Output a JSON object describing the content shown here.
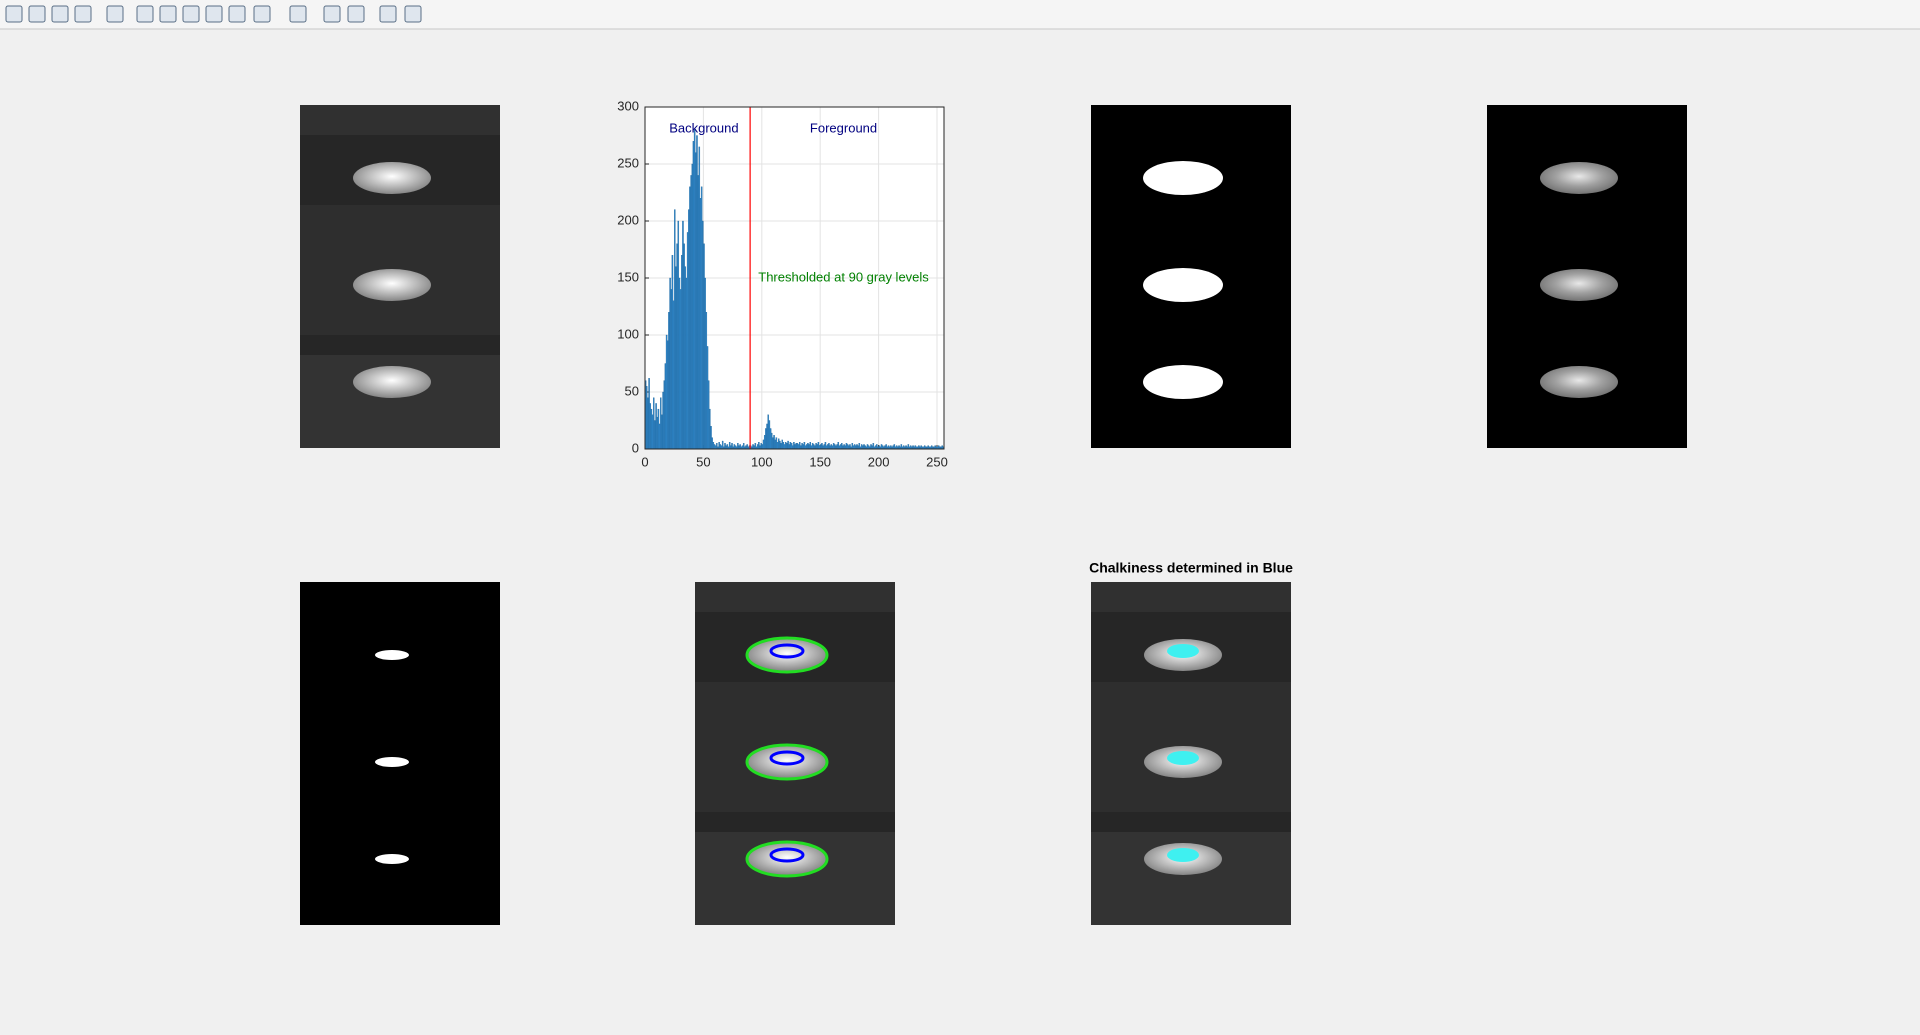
{
  "figure": {
    "subplot_title": "Chalkiness determined in Blue"
  },
  "chart_data": {
    "type": "histogram",
    "bins": [
      0,
      1,
      2,
      3,
      4,
      5,
      6,
      7,
      8,
      9,
      10,
      11,
      12,
      13,
      14,
      15,
      16,
      17,
      18,
      19,
      20,
      21,
      22,
      23,
      24,
      25,
      26,
      27,
      28,
      29,
      30,
      31,
      32,
      33,
      34,
      35,
      36,
      37,
      38,
      39,
      40,
      41,
      42,
      43,
      44,
      45,
      46,
      47,
      48,
      49,
      50,
      51,
      52,
      53,
      54,
      55,
      56,
      57,
      58,
      59,
      60,
      61,
      62,
      63,
      64,
      65,
      66,
      67,
      68,
      69,
      70,
      71,
      72,
      73,
      74,
      75,
      76,
      77,
      78,
      79,
      80,
      81,
      82,
      83,
      84,
      85,
      86,
      87,
      88,
      89,
      90,
      91,
      92,
      93,
      94,
      95,
      96,
      97,
      98,
      99,
      100,
      101,
      102,
      103,
      104,
      105,
      106,
      107,
      108,
      109,
      110,
      111,
      112,
      113,
      114,
      115,
      116,
      117,
      118,
      119,
      120,
      121,
      122,
      123,
      124,
      125,
      126,
      127,
      128,
      129,
      130,
      131,
      132,
      133,
      134,
      135,
      136,
      137,
      138,
      139,
      140,
      141,
      142,
      143,
      144,
      145,
      146,
      147,
      148,
      149,
      150,
      151,
      152,
      153,
      154,
      155,
      156,
      157,
      158,
      159,
      160,
      161,
      162,
      163,
      164,
      165,
      166,
      167,
      168,
      169,
      170,
      171,
      172,
      173,
      174,
      175,
      176,
      177,
      178,
      179,
      180,
      181,
      182,
      183,
      184,
      185,
      186,
      187,
      188,
      189,
      190,
      191,
      192,
      193,
      194,
      195,
      196,
      197,
      198,
      199,
      200,
      201,
      202,
      203,
      204,
      205,
      206,
      207,
      208,
      209,
      210,
      211,
      212,
      213,
      214,
      215,
      216,
      217,
      218,
      219,
      220,
      221,
      222,
      223,
      224,
      225,
      226,
      227,
      228,
      229,
      230,
      231,
      232,
      233,
      234,
      235,
      236,
      237,
      238,
      239,
      240,
      241,
      242,
      243,
      244,
      245,
      246,
      247,
      248,
      249,
      250,
      251,
      252,
      253,
      254,
      255,
      256
    ],
    "values": [
      60,
      55,
      45,
      62,
      40,
      35,
      30,
      45,
      25,
      40,
      28,
      35,
      22,
      45,
      30,
      50,
      60,
      75,
      100,
      95,
      120,
      150,
      140,
      170,
      130,
      210,
      160,
      180,
      200,
      150,
      140,
      170,
      200,
      180,
      160,
      150,
      190,
      210,
      230,
      240,
      250,
      270,
      280,
      260,
      275,
      240,
      265,
      220,
      230,
      200,
      180,
      150,
      120,
      90,
      60,
      35,
      20,
      10,
      6,
      4,
      3,
      5,
      2,
      6,
      4,
      3,
      7,
      2,
      5,
      3,
      4,
      2,
      6,
      3,
      5,
      2,
      4,
      3,
      2,
      5,
      3,
      4,
      2,
      3,
      5,
      2,
      3,
      4,
      2,
      3,
      3,
      2,
      4,
      3,
      5,
      2,
      4,
      6,
      3,
      5,
      4,
      8,
      12,
      18,
      22,
      30,
      25,
      18,
      14,
      10,
      12,
      8,
      10,
      6,
      9,
      7,
      5,
      8,
      6,
      4,
      6,
      5,
      7,
      4,
      6,
      5,
      3,
      6,
      4,
      5,
      5,
      4,
      6,
      3,
      5,
      4,
      6,
      3,
      4,
      5,
      4,
      6,
      3,
      5,
      4,
      3,
      5,
      4,
      6,
      3,
      4,
      5,
      3,
      4,
      6,
      3,
      4,
      5,
      3,
      4,
      3,
      5,
      4,
      3,
      4,
      6,
      3,
      4,
      5,
      3,
      4,
      3,
      5,
      4,
      3,
      4,
      2,
      5,
      3,
      4,
      3,
      4,
      3,
      5,
      2,
      4,
      3,
      4,
      3,
      2,
      4,
      3,
      2,
      4,
      3,
      5,
      2,
      3,
      4,
      2,
      3,
      2,
      4,
      3,
      2,
      3,
      4,
      2,
      3,
      2,
      3,
      2,
      3,
      4,
      2,
      3,
      2,
      3,
      2,
      4,
      2,
      3,
      2,
      3,
      2,
      4,
      2,
      3,
      2,
      3,
      2,
      3,
      2,
      2,
      3,
      2,
      3,
      2,
      2,
      3,
      2,
      2,
      3,
      2,
      2,
      3,
      2,
      2,
      3,
      2,
      2,
      3,
      2,
      2,
      3,
      2
    ],
    "color": "#2f86c8",
    "xlim": [
      0,
      256
    ],
    "xticks": [
      0,
      50,
      100,
      150,
      200,
      250
    ],
    "ylim": [
      0,
      300
    ],
    "yticks": [
      0,
      50,
      100,
      150,
      200,
      250,
      300
    ],
    "grid": true,
    "threshold": {
      "value": 90,
      "color": "#ff0000"
    },
    "annotations": [
      {
        "text": "Background",
        "color": "#000080"
      },
      {
        "text": "Foreground",
        "color": "#000080"
      },
      {
        "text": "Thresholded at 90 gray levels",
        "color": "#008000"
      }
    ]
  }
}
